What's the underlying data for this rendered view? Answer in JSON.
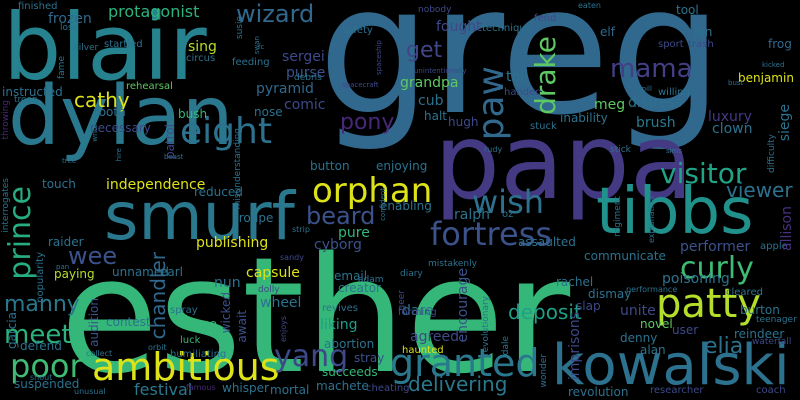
{
  "background": "#000000",
  "words": [
    {
      "text": "greg",
      "color": "#31688e"
    },
    {
      "text": "esther",
      "color": "#35b779"
    },
    {
      "text": "blair",
      "color": "#26828e"
    },
    {
      "text": "papa",
      "color": "#443983"
    },
    {
      "text": "dylan",
      "color": "#2a788e"
    },
    {
      "text": "kowalski",
      "color": "#2c728e"
    },
    {
      "text": "smurf",
      "color": "#2a788e"
    },
    {
      "text": "tibbs",
      "color": "#21918c"
    },
    {
      "text": "orphan",
      "color": "#dde318"
    },
    {
      "text": "fortress",
      "color": "#3b528b"
    },
    {
      "text": "patty",
      "color": "#b5de2b"
    },
    {
      "text": "ambitious",
      "color": "#dde318"
    },
    {
      "text": "granted",
      "color": "#2a788e"
    },
    {
      "text": "prince",
      "color": "#27ad81"
    },
    {
      "text": "eight",
      "color": "#2c728e"
    },
    {
      "text": "visitor",
      "color": "#20a386"
    },
    {
      "text": "curly",
      "color": "#3fbc73"
    },
    {
      "text": "yang",
      "color": "#3e4989"
    },
    {
      "text": "poor",
      "color": "#3fbc73"
    },
    {
      "text": "wish",
      "color": "#2c728e"
    },
    {
      "text": "paw",
      "color": "#31688e"
    },
    {
      "text": "drake",
      "color": "#5ec962"
    },
    {
      "text": "mama",
      "color": "#433e85"
    },
    {
      "text": "beard",
      "color": "#3b528b"
    },
    {
      "text": "wizard",
      "color": "#31688e"
    },
    {
      "text": "meet",
      "color": "#2db27d"
    },
    {
      "text": "manny",
      "color": "#2a788e"
    },
    {
      "text": "deposit",
      "color": "#1fa187"
    },
    {
      "text": "elia",
      "color": "#2c728e"
    },
    {
      "text": "protagonist",
      "color": "#2db27d"
    },
    {
      "text": "get",
      "color": "#404688"
    },
    {
      "text": "wee",
      "color": "#3b528b"
    },
    {
      "text": "delivering",
      "color": "#2a788e"
    },
    {
      "text": "chandler",
      "color": "#31688e"
    },
    {
      "text": "pony",
      "color": "#482878"
    },
    {
      "text": "viewer",
      "color": "#2c728e"
    },
    {
      "text": "cathy",
      "color": "#dde318"
    },
    {
      "text": "frozen",
      "color": "#31688e"
    },
    {
      "text": "festival",
      "color": "#2a788e"
    },
    {
      "text": "independence",
      "color": "#dde318"
    },
    {
      "text": "poisoning",
      "color": "#2c728e"
    },
    {
      "text": "allison",
      "color": "#46327e"
    },
    {
      "text": "brush",
      "color": "#2a788e"
    },
    {
      "text": "clown",
      "color": "#2c728e"
    },
    {
      "text": "luxury",
      "color": "#443983"
    },
    {
      "text": "capsule",
      "color": "#dde318"
    },
    {
      "text": "wheel",
      "color": "#2c728e"
    },
    {
      "text": "pure",
      "color": "#35b779"
    },
    {
      "text": "cyborg",
      "color": "#3b528b"
    },
    {
      "text": "ralph",
      "color": "#2c728e"
    },
    {
      "text": "performer",
      "color": "#3b528b"
    },
    {
      "text": "publishing",
      "color": "#dde318"
    },
    {
      "text": "liking",
      "color": "#1f9e89"
    },
    {
      "text": "nun",
      "color": "#2c728e"
    },
    {
      "text": "comic",
      "color": "#3e4989"
    },
    {
      "text": "sing",
      "color": "#b5de2b"
    },
    {
      "text": "pyramid",
      "color": "#31688e"
    },
    {
      "text": "meg",
      "color": "#5ec962"
    },
    {
      "text": "distress",
      "color": "#2c728e"
    },
    {
      "text": "benjamin",
      "color": "#dde318"
    },
    {
      "text": "toll",
      "color": "#2c728e"
    },
    {
      "text": "purse",
      "color": "#3b528b"
    },
    {
      "text": "sergei",
      "color": "#3e4989"
    },
    {
      "text": "grandpa",
      "color": "#5ec962"
    },
    {
      "text": "cub",
      "color": "#2c728e"
    },
    {
      "text": "fought",
      "color": "#3e4989"
    },
    {
      "text": "elf",
      "color": "#31688e"
    },
    {
      "text": "tool",
      "color": "#2c728e"
    },
    {
      "text": "jan",
      "color": "#2c728e"
    },
    {
      "text": "frog",
      "color": "#31688e"
    },
    {
      "text": "siege",
      "color": "#2c728e"
    },
    {
      "text": "button",
      "color": "#2c728e"
    },
    {
      "text": "enjoying",
      "color": "#2c728e"
    },
    {
      "text": "touch",
      "color": "#2c728e"
    },
    {
      "text": "unnamed",
      "color": "#2c728e"
    },
    {
      "text": "earl",
      "color": "#2c728e"
    },
    {
      "text": "wicked",
      "color": "#3b528b"
    },
    {
      "text": "await",
      "color": "#3b528b"
    },
    {
      "text": "zoo",
      "color": "#35b779"
    },
    {
      "text": "contest",
      "color": "#2c728e"
    },
    {
      "text": "dare",
      "color": "#2c728e"
    },
    {
      "text": "agreed",
      "color": "#3e4989"
    },
    {
      "text": "unite",
      "color": "#3e4989"
    },
    {
      "text": "novel",
      "color": "#5ec962"
    },
    {
      "text": "denny",
      "color": "#2c728e"
    },
    {
      "text": "alan",
      "color": "#2c728e"
    },
    {
      "text": "user",
      "color": "#3e4989"
    },
    {
      "text": "reindeer",
      "color": "#2c728e"
    },
    {
      "text": "burton",
      "color": "#2c728e"
    },
    {
      "text": "stray",
      "color": "#3b528b"
    },
    {
      "text": "succeeds",
      "color": "#35b779"
    },
    {
      "text": "machete",
      "color": "#2c728e"
    },
    {
      "text": "mortal",
      "color": "#2c728e"
    },
    {
      "text": "whisper",
      "color": "#2c728e"
    },
    {
      "text": "revolution",
      "color": "#2c728e"
    },
    {
      "text": "researcher",
      "color": "#3e4989"
    },
    {
      "text": "coach",
      "color": "#3e4989"
    },
    {
      "text": "slap",
      "color": "#3e4989"
    },
    {
      "text": "dismay",
      "color": "#2c728e"
    },
    {
      "text": "rachel",
      "color": "#2c728e"
    },
    {
      "text": "imprisons",
      "color": "#3e4989"
    },
    {
      "text": "encourage",
      "color": "#3b528b"
    },
    {
      "text": "assaulted",
      "color": "#2c728e"
    },
    {
      "text": "communicate",
      "color": "#2c728e"
    },
    {
      "text": "enabling",
      "color": "#2c728e"
    },
    {
      "text": "reduced",
      "color": "#2c728e"
    },
    {
      "text": "troupe",
      "color": "#2c728e"
    },
    {
      "text": "raider",
      "color": "#2c728e"
    },
    {
      "text": "paying",
      "color": "#b5de2b"
    },
    {
      "text": "garcia",
      "color": "#2c728e"
    },
    {
      "text": "audition",
      "color": "#3b528b"
    },
    {
      "text": "defend",
      "color": "#2c728e"
    },
    {
      "text": "suspended",
      "color": "#2c728e"
    },
    {
      "text": "abortion",
      "color": "#2c728e"
    },
    {
      "text": "email",
      "color": "#2c728e"
    },
    {
      "text": "creator",
      "color": "#2c728e"
    },
    {
      "text": "tooth",
      "color": "#2c728e"
    },
    {
      "text": "bush",
      "color": "#35b779"
    },
    {
      "text": "nose",
      "color": "#2c728e"
    },
    {
      "text": "instructed",
      "color": "#2c728e"
    },
    {
      "text": "necessary",
      "color": "#3e4989"
    },
    {
      "text": "rehearsal",
      "color": "#5ec962"
    },
    {
      "text": "patrol",
      "color": "#3e4989"
    },
    {
      "text": "halt",
      "color": "#2c728e"
    },
    {
      "text": "hugh",
      "color": "#3e4989"
    },
    {
      "text": "inability",
      "color": "#2c728e"
    },
    {
      "text": "stuck",
      "color": "#2c728e"
    },
    {
      "text": "handed",
      "color": "#3e4989"
    },
    {
      "text": "willing",
      "color": "#2c728e"
    },
    {
      "text": "feeding",
      "color": "#2c728e"
    },
    {
      "text": "technique",
      "color": "#2c728e"
    },
    {
      "text": "finished",
      "color": "#2c728e"
    },
    {
      "text": "startled",
      "color": "#2c728e"
    },
    {
      "text": "circus",
      "color": "#2c728e"
    },
    {
      "text": "safety",
      "color": "#2c728e"
    },
    {
      "text": "haunted",
      "color": "#dde318"
    },
    {
      "text": "forming",
      "color": "#3e4989"
    },
    {
      "text": "revives",
      "color": "#2c728e"
    },
    {
      "text": "humiliating",
      "color": "#2c728e"
    },
    {
      "text": "cheating",
      "color": "#3e4989"
    },
    {
      "text": "luck",
      "color": "#35b779"
    },
    {
      "text": "spray",
      "color": "#2c728e"
    },
    {
      "text": "fend",
      "color": "#3e4989"
    },
    {
      "text": "sport",
      "color": "#3e4989"
    },
    {
      "text": "trash",
      "color": "#3e4989"
    },
    {
      "text": "apple",
      "color": "#2c728e"
    },
    {
      "text": "teenager",
      "color": "#2c728e"
    },
    {
      "text": "cleared",
      "color": "#2c728e"
    },
    {
      "text": "waterfall",
      "color": "#3e4989"
    },
    {
      "text": "fame",
      "color": "#2c728e"
    },
    {
      "text": "silver",
      "color": "#2c728e"
    },
    {
      "text": "lose",
      "color": "#2c728e"
    },
    {
      "text": "troop",
      "color": "#2c728e"
    },
    {
      "text": "throwing",
      "color": "#482878"
    },
    {
      "text": "susie",
      "color": "#2c728e"
    },
    {
      "text": "nobody",
      "color": "#3e4989"
    },
    {
      "text": "eaten",
      "color": "#2c728e"
    },
    {
      "text": "debris",
      "color": "#2c728e"
    },
    {
      "text": "diary",
      "color": "#2c728e"
    },
    {
      "text": "adam",
      "color": "#2c728e"
    },
    {
      "text": "mistakenly",
      "color": "#2c728e"
    },
    {
      "text": "oz",
      "color": "#2c728e"
    },
    {
      "text": "popularity",
      "color": "#2c728e"
    },
    {
      "text": "interrogates",
      "color": "#2c728e"
    },
    {
      "text": "misunderstanding",
      "color": "#2c728e"
    },
    {
      "text": "regiment",
      "color": "#2c728e"
    },
    {
      "text": "explanation",
      "color": "#2c728e"
    },
    {
      "text": "difficulty",
      "color": "#2c728e"
    },
    {
      "text": "dolly",
      "color": "#3e4989"
    },
    {
      "text": "enjoys",
      "color": "#3e4989"
    },
    {
      "text": "geer",
      "color": "#3e4989"
    },
    {
      "text": "sandy",
      "color": "#3e4989"
    },
    {
      "text": "collect",
      "color": "#2c728e"
    },
    {
      "text": "orbit",
      "color": "#2c728e"
    },
    {
      "text": "shout",
      "color": "#2c728e"
    },
    {
      "text": "unusual",
      "color": "#2c728e"
    },
    {
      "text": "famous",
      "color": "#482878"
    },
    {
      "text": "spaceship",
      "color": "#3e4989"
    },
    {
      "text": "spacecraft",
      "color": "#3e4989"
    },
    {
      "text": "unintentionally",
      "color": "#3e4989"
    },
    {
      "text": "revolutionary",
      "color": "#2c728e"
    },
    {
      "text": "dale",
      "color": "#2c728e"
    },
    {
      "text": "wonder",
      "color": "#2c728e"
    },
    {
      "text": "confident",
      "color": "#2c728e"
    },
    {
      "text": "strip",
      "color": "#2c728e"
    },
    {
      "text": "rudy",
      "color": "#2c728e"
    },
    {
      "text": "stick",
      "color": "#2c728e"
    },
    {
      "text": "sims",
      "color": "#2c728e"
    },
    {
      "text": "spill",
      "color": "#2c728e"
    },
    {
      "text": "bust",
      "color": "#2c728e"
    },
    {
      "text": "kicked",
      "color": "#2c728e"
    },
    {
      "text": "write",
      "color": "#2c728e"
    },
    {
      "text": "hire",
      "color": "#2c728e"
    },
    {
      "text": "tree",
      "color": "#2c728e"
    },
    {
      "text": "pan",
      "color": "#2c728e"
    },
    {
      "text": "beast",
      "color": "#2c728e"
    },
    {
      "text": "swan",
      "color": "#2c728e"
    },
    {
      "text": "performance",
      "color": "#2c728e"
    },
    {
      "text": "fc",
      "color": "#2c728e"
    }
  ]
}
